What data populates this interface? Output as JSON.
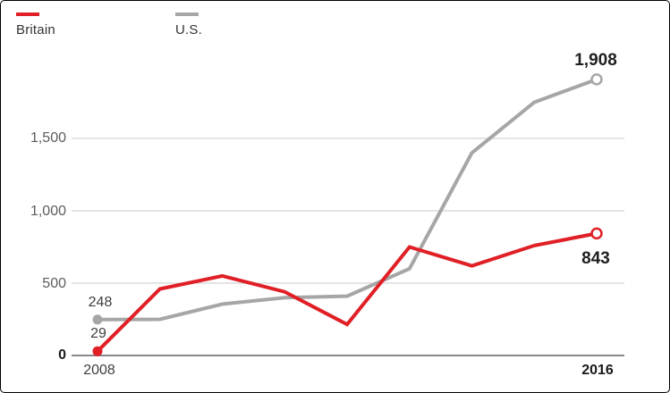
{
  "legend": {
    "items": [
      {
        "label": "Britain",
        "color": "#e01f26"
      },
      {
        "label": "U.S.",
        "color": "#a6a6a6"
      }
    ]
  },
  "axes": {
    "y_ticks": [
      {
        "label": "1,500",
        "value": 1500
      },
      {
        "label": "1,000",
        "value": 1000
      },
      {
        "label": "500",
        "value": 500
      },
      {
        "label": "0",
        "value": 0
      }
    ],
    "x_ticks": [
      {
        "label": "2008"
      },
      {
        "label": "2016"
      }
    ]
  },
  "point_labels": {
    "us_start": "248",
    "britain_start": "29",
    "us_end": "1,908",
    "britain_end": "843"
  },
  "chart_data": {
    "type": "line",
    "x": [
      2008,
      2009,
      2010,
      2011,
      2012,
      2013,
      2014,
      2015,
      2016
    ],
    "series": [
      {
        "name": "Britain",
        "color": "#e01f26",
        "values": [
          29,
          460,
          550,
          440,
          215,
          750,
          620,
          760,
          843
        ],
        "start_label": "29",
        "end_label": "843"
      },
      {
        "name": "U.S.",
        "color": "#a6a6a6",
        "values": [
          248,
          250,
          355,
          400,
          410,
          600,
          1400,
          1750,
          1908
        ],
        "start_label": "248",
        "end_label": "1,908"
      }
    ],
    "title": "",
    "xlabel": "",
    "ylabel": "",
    "ylim": [
      0,
      2000
    ],
    "y_gridlines": [
      500,
      1000,
      1500
    ],
    "grid": true,
    "legend_position": "top-left",
    "markers": {
      "first_point": "filled-dot",
      "last_point": "open-circle"
    },
    "gridline_color": "#d4d4d4",
    "baseline_color": "#8a8a8a"
  }
}
